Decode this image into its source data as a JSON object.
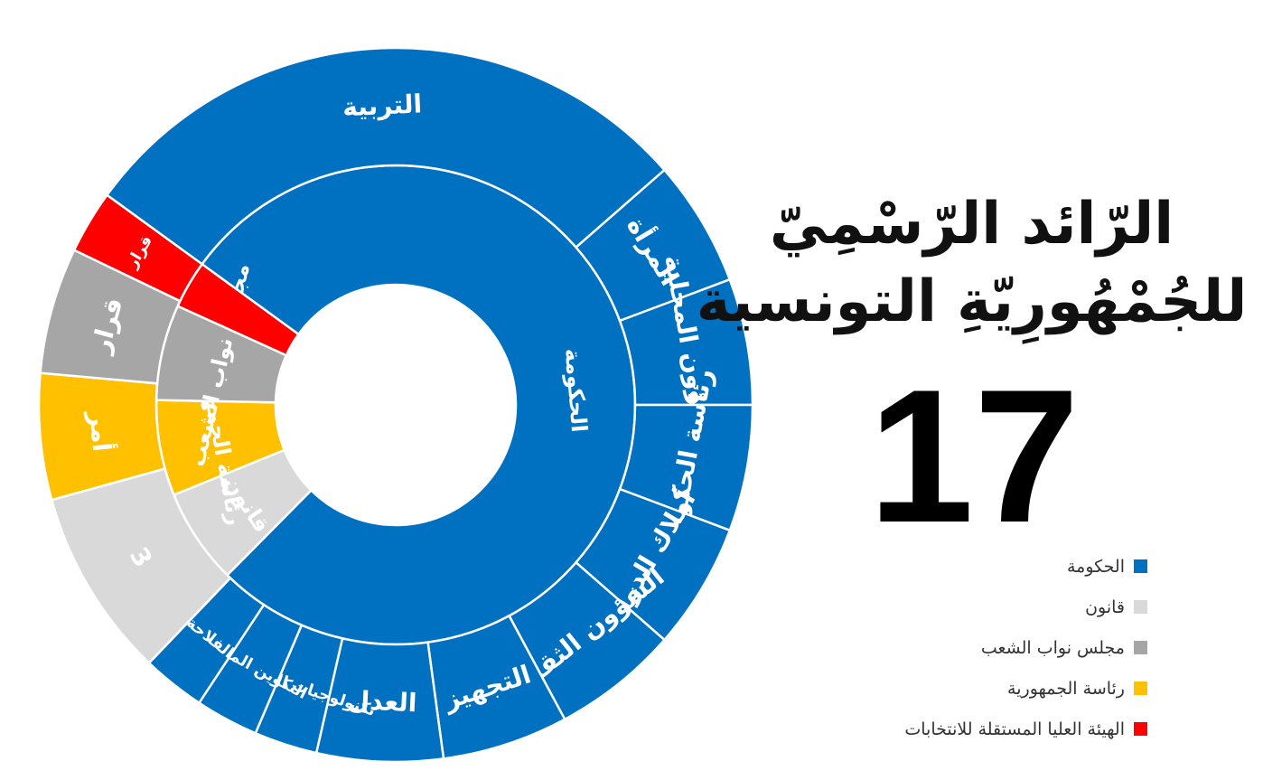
{
  "header": {
    "title_line1": "الرّائد الرّسْمِيّ",
    "title_line2": "للجُمْهُورِيّةِ التونسية",
    "count": "17"
  },
  "legend": [
    {
      "label": "الحكومة",
      "color": "#0070C0"
    },
    {
      "label": "قانون",
      "color": "#D9D9D9"
    },
    {
      "label": "مجلس نواب الشعب",
      "color": "#A6A6A6"
    },
    {
      "label": "رئاسة الجمهورية",
      "color": "#FFC000"
    },
    {
      "label": "الهيئة العليا المستقلة للانتخابات",
      "color": "#FF0000"
    }
  ],
  "chart_data": {
    "type": "sunburst",
    "inner": [
      {
        "label": "الحكومة",
        "value": 12,
        "color": "#0070C0"
      },
      {
        "label": "قانون",
        "value": 1,
        "color": "#D9D9D9"
      },
      {
        "label": "رئاسة الجمهورية",
        "value": 1,
        "color": "#FFC000"
      },
      {
        "label": "مجلس نواب الشعب",
        "value": 1,
        "color": "#A6A6A6"
      },
      {
        "label": "",
        "value": 0.5,
        "color": "#FF0000"
      }
    ],
    "outer": [
      {
        "label": "التربية",
        "value": 5,
        "color": "#0070C0"
      },
      {
        "label": "المرأة",
        "value": 1,
        "color": "#0070C0"
      },
      {
        "label": "الشؤون المحلية",
        "value": 1,
        "color": "#0070C0"
      },
      {
        "label": "رئاسة الحكومة",
        "value": 1,
        "color": "#0070C0"
      },
      {
        "label": "أملاك الدولة",
        "value": 1,
        "color": "#0070C0"
      },
      {
        "label": "الشؤون الثقافية",
        "value": 1,
        "color": "#0070C0"
      },
      {
        "label": "التجهيز",
        "value": 1,
        "color": "#0070C0"
      },
      {
        "label": "العدل",
        "value": 1,
        "color": "#0070C0"
      },
      {
        "label": "تكنولوجيات الاتصال",
        "value": 0.5,
        "color": "#0070C0"
      },
      {
        "label": "التكوين المهني",
        "value": 0.5,
        "color": "#0070C0"
      },
      {
        "label": "الفلاحة",
        "value": 0.5,
        "color": "#0070C0"
      },
      {
        "label": "3",
        "value": 1.5,
        "color": "#D9D9D9"
      },
      {
        "label": "أمر",
        "value": 1,
        "color": "#FFC000"
      },
      {
        "label": "قرار",
        "value": 1,
        "color": "#A6A6A6"
      },
      {
        "label": "قرار",
        "value": 0.5,
        "color": "#FF0000"
      }
    ]
  }
}
